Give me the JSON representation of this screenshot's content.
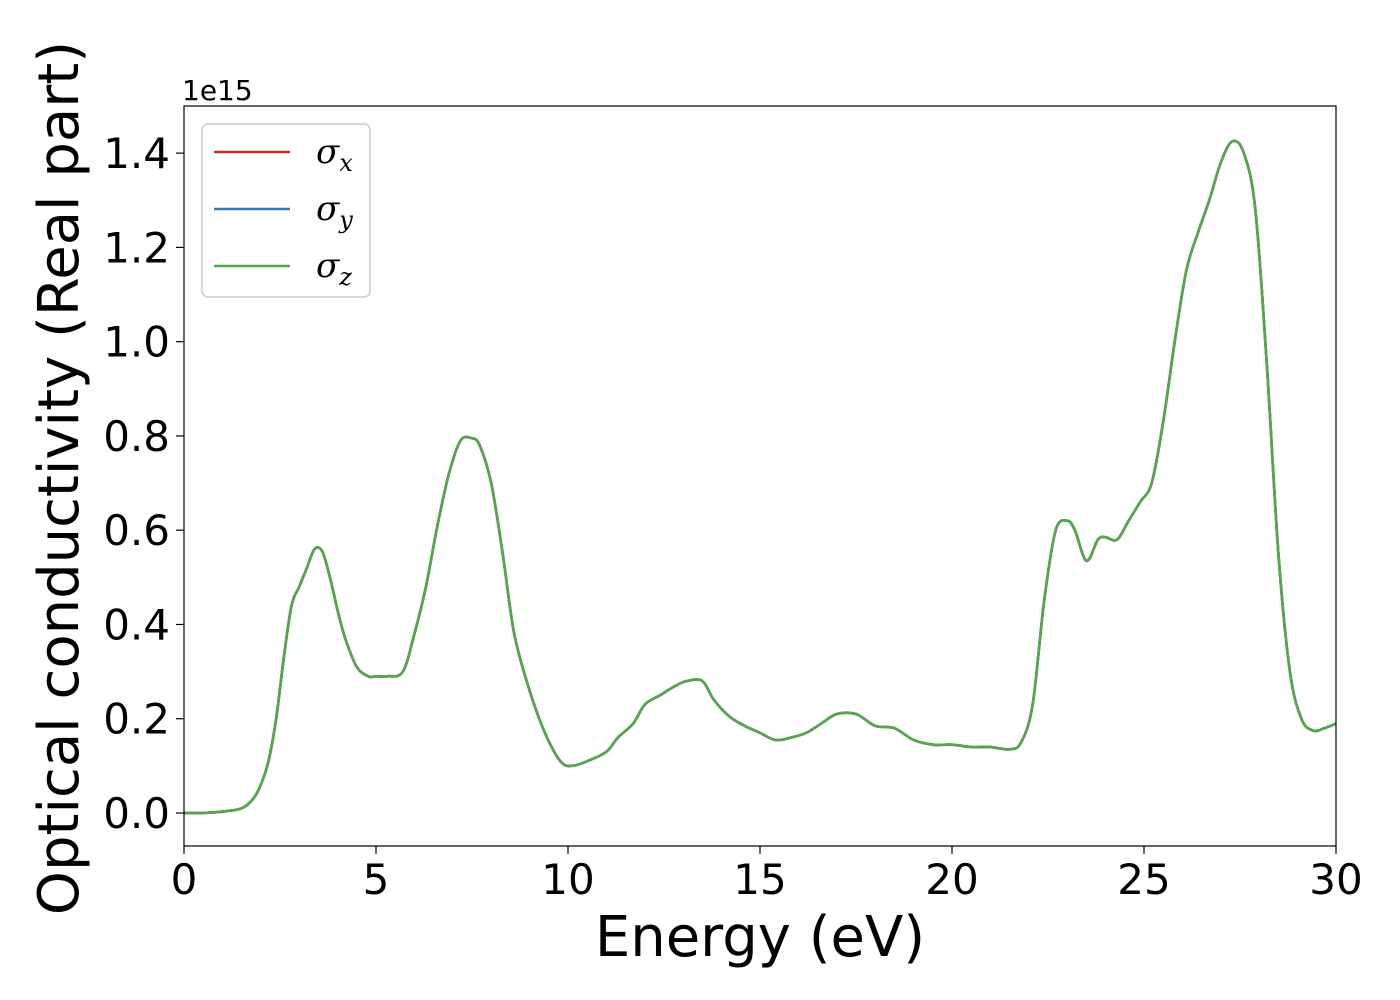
{
  "chart_data": {
    "type": "line",
    "title": "",
    "xlabel": "Energy (eV)",
    "ylabel": "Optical conductivity (Real part)",
    "y_offset_label": "1e15",
    "xlim": [
      0,
      30
    ],
    "ylim": [
      -0.07,
      1.5
    ],
    "xticks": [
      0,
      5,
      10,
      15,
      20,
      25,
      30
    ],
    "xtick_labels": [
      "0",
      "5",
      "10",
      "15",
      "20",
      "25",
      "30"
    ],
    "yticks": [
      0.0,
      0.2,
      0.4,
      0.6,
      0.8,
      1.0,
      1.2,
      1.4
    ],
    "ytick_labels": [
      "0.0",
      "0.2",
      "0.4",
      "0.6",
      "0.8",
      "1.0",
      "1.2",
      "1.4"
    ],
    "grid": false,
    "legend_position": "top-left",
    "x": [
      0,
      0.5,
      1.0,
      1.5,
      1.8,
      2.0,
      2.2,
      2.4,
      2.6,
      2.8,
      3.0,
      3.2,
      3.4,
      3.6,
      3.8,
      4.0,
      4.2,
      4.5,
      4.8,
      5.0,
      5.3,
      5.7,
      6.0,
      6.3,
      6.6,
      6.9,
      7.2,
      7.5,
      7.7,
      8.0,
      8.3,
      8.6,
      9.0,
      9.4,
      9.8,
      10.1,
      10.5,
      11.0,
      11.3,
      11.7,
      12.0,
      12.4,
      12.8,
      13.1,
      13.5,
      13.8,
      14.2,
      14.6,
      15.0,
      15.4,
      15.8,
      16.2,
      16.6,
      17.0,
      17.5,
      18.0,
      18.5,
      19.0,
      19.5,
      20.0,
      20.5,
      21.0,
      21.5,
      21.8,
      22.1,
      22.4,
      22.7,
      23.0,
      23.2,
      23.5,
      23.8,
      24.0,
      24.3,
      24.6,
      24.9,
      25.2,
      25.5,
      25.8,
      26.1,
      26.4,
      26.7,
      27.0,
      27.3,
      27.6,
      27.9,
      28.2,
      28.5,
      28.8,
      29.1,
      29.4,
      29.7,
      30.0
    ],
    "series": [
      {
        "name": "σx",
        "color": "#d62728",
        "values": [
          0.0,
          0.0,
          0.003,
          0.01,
          0.03,
          0.06,
          0.11,
          0.2,
          0.33,
          0.44,
          0.48,
          0.52,
          0.56,
          0.555,
          0.5,
          0.43,
          0.37,
          0.31,
          0.29,
          0.29,
          0.29,
          0.3,
          0.38,
          0.48,
          0.61,
          0.72,
          0.79,
          0.795,
          0.78,
          0.7,
          0.55,
          0.38,
          0.26,
          0.17,
          0.11,
          0.1,
          0.11,
          0.13,
          0.16,
          0.19,
          0.23,
          0.25,
          0.27,
          0.28,
          0.28,
          0.24,
          0.205,
          0.185,
          0.17,
          0.155,
          0.16,
          0.17,
          0.19,
          0.21,
          0.21,
          0.185,
          0.18,
          0.155,
          0.145,
          0.145,
          0.14,
          0.14,
          0.135,
          0.15,
          0.23,
          0.45,
          0.6,
          0.62,
          0.6,
          0.535,
          0.58,
          0.585,
          0.58,
          0.62,
          0.66,
          0.7,
          0.83,
          1.0,
          1.15,
          1.23,
          1.3,
          1.38,
          1.425,
          1.4,
          1.28,
          0.95,
          0.55,
          0.3,
          0.2,
          0.175,
          0.18,
          0.19
        ]
      },
      {
        "name": "σy",
        "color": "#3a76b0",
        "values": [
          0.0,
          0.0,
          0.003,
          0.01,
          0.03,
          0.06,
          0.11,
          0.2,
          0.33,
          0.44,
          0.48,
          0.52,
          0.56,
          0.555,
          0.5,
          0.43,
          0.37,
          0.31,
          0.29,
          0.29,
          0.29,
          0.3,
          0.38,
          0.48,
          0.61,
          0.72,
          0.79,
          0.795,
          0.78,
          0.7,
          0.55,
          0.38,
          0.26,
          0.17,
          0.11,
          0.1,
          0.11,
          0.13,
          0.16,
          0.19,
          0.23,
          0.25,
          0.27,
          0.28,
          0.28,
          0.24,
          0.205,
          0.185,
          0.17,
          0.155,
          0.16,
          0.17,
          0.19,
          0.21,
          0.21,
          0.185,
          0.18,
          0.155,
          0.145,
          0.145,
          0.14,
          0.14,
          0.135,
          0.15,
          0.23,
          0.45,
          0.6,
          0.62,
          0.6,
          0.535,
          0.58,
          0.585,
          0.58,
          0.62,
          0.66,
          0.7,
          0.83,
          1.0,
          1.15,
          1.23,
          1.3,
          1.38,
          1.425,
          1.4,
          1.28,
          0.95,
          0.55,
          0.3,
          0.2,
          0.175,
          0.18,
          0.19
        ]
      },
      {
        "name": "σz",
        "color": "#54a84a",
        "values": [
          0.0,
          0.0,
          0.003,
          0.01,
          0.03,
          0.06,
          0.11,
          0.2,
          0.33,
          0.44,
          0.48,
          0.52,
          0.56,
          0.555,
          0.5,
          0.43,
          0.37,
          0.31,
          0.29,
          0.29,
          0.29,
          0.3,
          0.38,
          0.48,
          0.61,
          0.72,
          0.79,
          0.795,
          0.78,
          0.7,
          0.55,
          0.38,
          0.26,
          0.17,
          0.11,
          0.1,
          0.11,
          0.13,
          0.16,
          0.19,
          0.23,
          0.25,
          0.27,
          0.28,
          0.28,
          0.24,
          0.205,
          0.185,
          0.17,
          0.155,
          0.16,
          0.17,
          0.19,
          0.21,
          0.21,
          0.185,
          0.18,
          0.155,
          0.145,
          0.145,
          0.14,
          0.14,
          0.135,
          0.15,
          0.23,
          0.45,
          0.6,
          0.62,
          0.6,
          0.535,
          0.58,
          0.585,
          0.58,
          0.62,
          0.66,
          0.7,
          0.83,
          1.0,
          1.15,
          1.23,
          1.3,
          1.38,
          1.425,
          1.4,
          1.28,
          0.95,
          0.55,
          0.3,
          0.2,
          0.175,
          0.18,
          0.19
        ]
      }
    ],
    "legend": [
      {
        "symbol": "σ",
        "sub": "x",
        "color": "#d62728"
      },
      {
        "symbol": "σ",
        "sub": "y",
        "color": "#3a76b0"
      },
      {
        "symbol": "σ",
        "sub": "z",
        "color": "#54a84a"
      }
    ]
  }
}
